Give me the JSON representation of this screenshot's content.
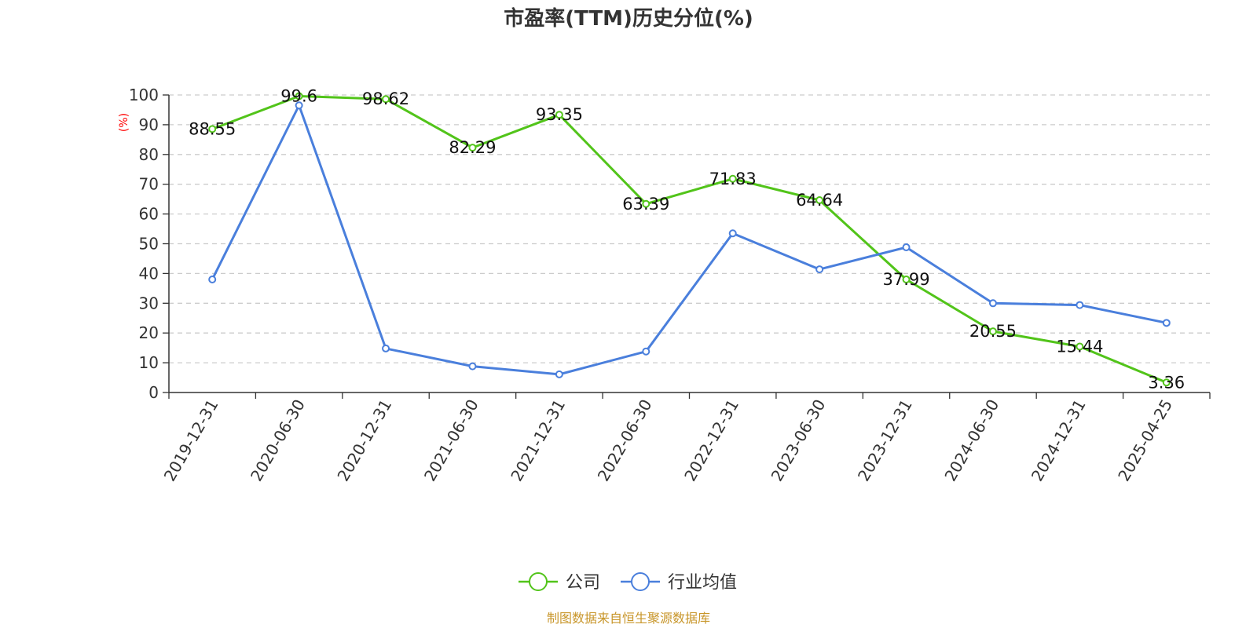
{
  "source_text": "制图数据来自恒生聚源数据库",
  "colors": {
    "company": "#52c41a",
    "industry": "#4a7fdc",
    "axis_unit": "#ff0000",
    "source": "#c8962a",
    "grid": "#cccccc"
  },
  "chart_data": {
    "type": "line",
    "title": "市盈率(TTM)历史分位(%)",
    "ylabel": "(%)",
    "xlabel": "",
    "ylim": [
      0,
      100
    ],
    "yticks": [
      0,
      10,
      20,
      30,
      40,
      50,
      60,
      70,
      80,
      90,
      100
    ],
    "grid": true,
    "legend_position": "bottom-center",
    "categories": [
      "2019-12-31",
      "2020-06-30",
      "2020-12-31",
      "2021-06-30",
      "2021-12-31",
      "2022-06-30",
      "2022-12-31",
      "2023-06-30",
      "2023-12-31",
      "2024-06-30",
      "2024-12-31",
      "2025-04-25"
    ],
    "series": [
      {
        "name": "公司",
        "color": "#52c41a",
        "show_labels": true,
        "values": [
          88.55,
          99.6,
          98.62,
          82.29,
          93.35,
          63.39,
          71.83,
          64.64,
          37.99,
          20.55,
          15.44,
          3.36
        ],
        "labels": [
          "88.55",
          "99.6",
          "98.62",
          "82.29",
          "93.35",
          "63.39",
          "71.83",
          "64.64",
          "37.99",
          "20.55",
          "15.44",
          "3.36"
        ]
      },
      {
        "name": "行业均值",
        "color": "#4a7fdc",
        "show_labels": false,
        "values": [
          38,
          96.5,
          14.8,
          8.8,
          6.1,
          13.8,
          53.5,
          41.4,
          48.8,
          30,
          29.4,
          23.4
        ]
      }
    ]
  }
}
